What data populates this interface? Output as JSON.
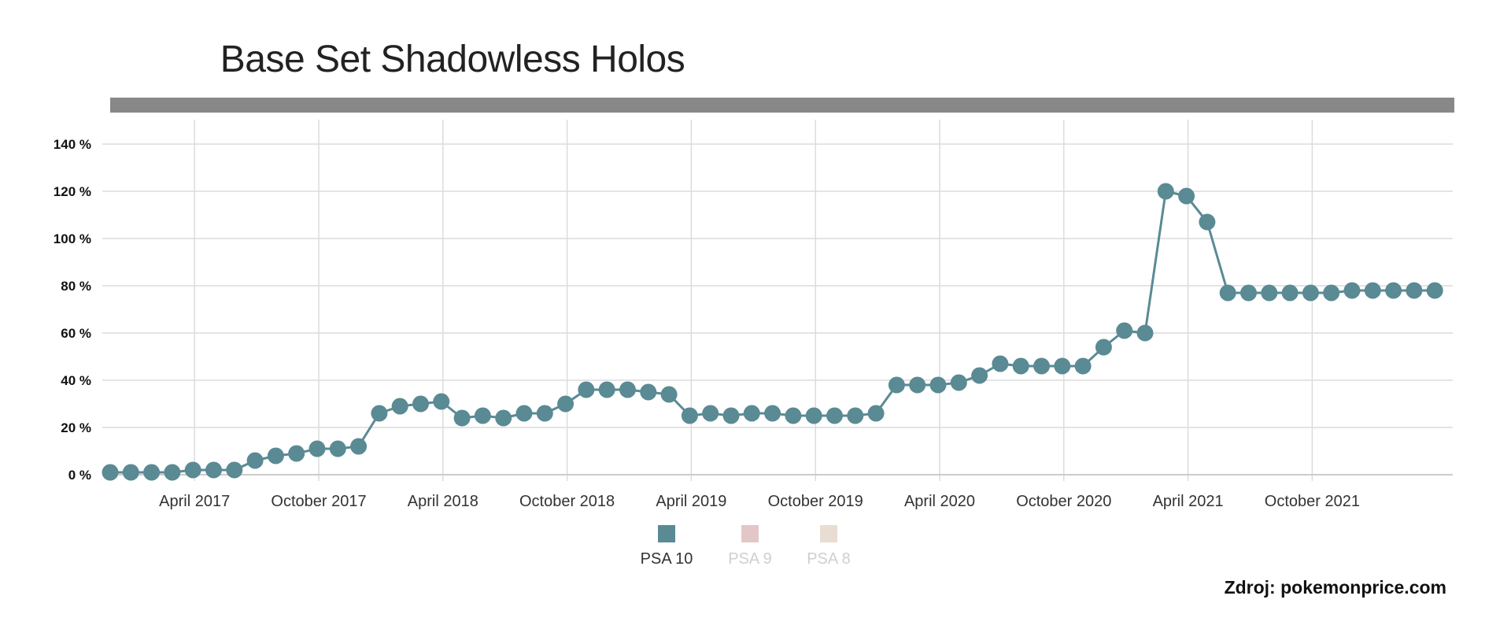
{
  "chart_data": {
    "type": "line",
    "title": "Base Set Shadowless Holos",
    "xlabel": "",
    "ylabel": "",
    "x_tick_labels": [
      "April 2017",
      "October 2017",
      "April 2018",
      "October 2018",
      "April 2019",
      "October 2019",
      "April 2020",
      "October 2020",
      "April 2021",
      "October 2021"
    ],
    "x_start": "2016-12",
    "x_end": "2022-01",
    "y_tick_labels": [
      "0 %",
      "20 %",
      "40 %",
      "60 %",
      "80 %",
      "100 %",
      "120 %",
      "140 %"
    ],
    "ylim": [
      0,
      140
    ],
    "grid": true,
    "legend_position": "bottom",
    "series": [
      {
        "name": "PSA 10",
        "color": "#5a8a94",
        "visible": true,
        "x": [
          "2016-12",
          "2017-01",
          "2017-02",
          "2017-03",
          "2017-04",
          "2017-05",
          "2017-06",
          "2017-07",
          "2017-08",
          "2017-09",
          "2017-10",
          "2017-11",
          "2017-12",
          "2018-01",
          "2018-02",
          "2018-03",
          "2018-04",
          "2018-05",
          "2018-06",
          "2018-07",
          "2018-08",
          "2018-09",
          "2018-10",
          "2018-11",
          "2018-12",
          "2019-01",
          "2019-02",
          "2019-03",
          "2019-04",
          "2019-05",
          "2019-06",
          "2019-07",
          "2019-08",
          "2019-09",
          "2019-10",
          "2019-11",
          "2019-12",
          "2020-01",
          "2020-02",
          "2020-03",
          "2020-04",
          "2020-05",
          "2020-06",
          "2020-07",
          "2020-08",
          "2020-09",
          "2020-10",
          "2020-11",
          "2020-12",
          "2021-01",
          "2021-02",
          "2021-03",
          "2021-04",
          "2021-05",
          "2021-06",
          "2021-07",
          "2021-08",
          "2021-09",
          "2021-10",
          "2021-11",
          "2021-12",
          "2022-01",
          "2022-02",
          "2022-03",
          "2022-04"
        ],
        "values": [
          1,
          1,
          1,
          1,
          2,
          2,
          2,
          6,
          8,
          9,
          11,
          11,
          12,
          26,
          29,
          30,
          31,
          24,
          25,
          24,
          26,
          26,
          30,
          36,
          36,
          36,
          35,
          34,
          25,
          26,
          25,
          26,
          26,
          25,
          25,
          25,
          25,
          26,
          38,
          38,
          38,
          39,
          42,
          47,
          46,
          46,
          46,
          46,
          54,
          61,
          60,
          120,
          118,
          107,
          77,
          77,
          77,
          77,
          77,
          77,
          78,
          78,
          78,
          78,
          78
        ]
      },
      {
        "name": "PSA 9",
        "color": "#e3c7c7",
        "visible": false,
        "values": []
      },
      {
        "name": "PSA 8",
        "color": "#e8ddd0",
        "visible": false,
        "values": []
      }
    ],
    "source": "Zdroj: pokemonprice.com"
  }
}
